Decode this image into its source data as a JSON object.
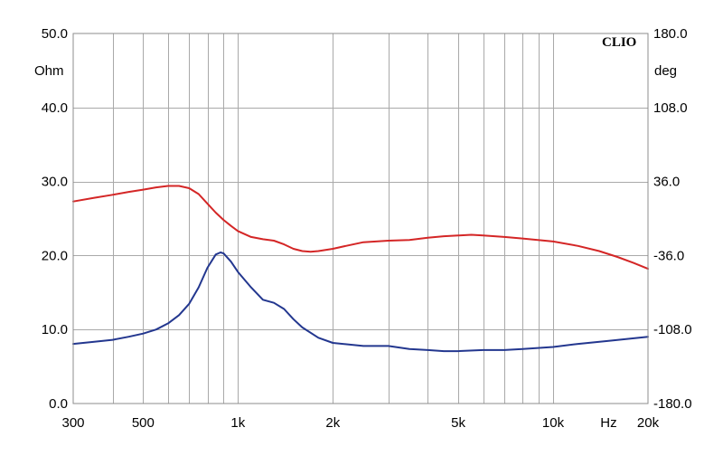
{
  "chart_data": {
    "type": "line",
    "brand": "CLIO",
    "x_scale": "log",
    "xlim": [
      300,
      20000
    ],
    "x_ticks": [
      {
        "value": 300,
        "label": "300"
      },
      {
        "value": 500,
        "label": "500"
      },
      {
        "value": 1000,
        "label": "1k"
      },
      {
        "value": 2000,
        "label": "2k"
      },
      {
        "value": 5000,
        "label": "5k"
      },
      {
        "value": 10000,
        "label": "10k"
      },
      {
        "value": 20000,
        "label": "20k"
      }
    ],
    "x_unit": "Hz",
    "x_unit_value": 15000,
    "x_minor_grid": [
      400,
      600,
      700,
      800,
      900,
      3000,
      4000,
      6000,
      7000,
      8000,
      9000
    ],
    "y_left": {
      "unit": "Ohm",
      "ylim": [
        0,
        50
      ],
      "ticks": [
        "0.0",
        "10.0",
        "20.0",
        "30.0",
        "40.0",
        "50.0"
      ]
    },
    "y_right": {
      "unit": "deg",
      "ylim": [
        -180,
        180
      ],
      "ticks": [
        "-180.0",
        "-108.0",
        "-36.0",
        "36.0",
        "108.0",
        "180.0"
      ]
    },
    "grid": true,
    "colors": {
      "impedance": "#d42626",
      "phase": "#23378f"
    },
    "series": [
      {
        "key": "impedance",
        "axis": "left",
        "points": [
          [
            300,
            27.3
          ],
          [
            350,
            27.8
          ],
          [
            400,
            28.2
          ],
          [
            450,
            28.6
          ],
          [
            500,
            28.9
          ],
          [
            550,
            29.2
          ],
          [
            600,
            29.4
          ],
          [
            650,
            29.4
          ],
          [
            700,
            29.1
          ],
          [
            750,
            28.3
          ],
          [
            800,
            27.0
          ],
          [
            850,
            25.8
          ],
          [
            900,
            24.8
          ],
          [
            950,
            24.0
          ],
          [
            1000,
            23.3
          ],
          [
            1100,
            22.5
          ],
          [
            1200,
            22.2
          ],
          [
            1300,
            22.0
          ],
          [
            1400,
            21.5
          ],
          [
            1500,
            20.9
          ],
          [
            1600,
            20.6
          ],
          [
            1700,
            20.5
          ],
          [
            1800,
            20.6
          ],
          [
            2000,
            20.9
          ],
          [
            2200,
            21.3
          ],
          [
            2500,
            21.8
          ],
          [
            3000,
            22.0
          ],
          [
            3500,
            22.1
          ],
          [
            4000,
            22.4
          ],
          [
            4500,
            22.6
          ],
          [
            5000,
            22.7
          ],
          [
            5500,
            22.8
          ],
          [
            6000,
            22.7
          ],
          [
            7000,
            22.5
          ],
          [
            8000,
            22.3
          ],
          [
            10000,
            21.9
          ],
          [
            12000,
            21.3
          ],
          [
            14000,
            20.6
          ],
          [
            16000,
            19.8
          ],
          [
            18000,
            19.0
          ],
          [
            20000,
            18.2
          ]
        ]
      },
      {
        "key": "phase",
        "axis": "right",
        "points": [
          [
            300,
            -122
          ],
          [
            350,
            -120
          ],
          [
            400,
            -118
          ],
          [
            450,
            -115
          ],
          [
            500,
            -112
          ],
          [
            550,
            -108
          ],
          [
            600,
            -102
          ],
          [
            650,
            -94
          ],
          [
            700,
            -83
          ],
          [
            750,
            -67
          ],
          [
            800,
            -48
          ],
          [
            850,
            -35
          ],
          [
            880,
            -33
          ],
          [
            900,
            -34
          ],
          [
            950,
            -42
          ],
          [
            1000,
            -52
          ],
          [
            1100,
            -67
          ],
          [
            1200,
            -79
          ],
          [
            1300,
            -82
          ],
          [
            1400,
            -88
          ],
          [
            1500,
            -98
          ],
          [
            1600,
            -106
          ],
          [
            1800,
            -116
          ],
          [
            2000,
            -121
          ],
          [
            2500,
            -124
          ],
          [
            3000,
            -124
          ],
          [
            3500,
            -127
          ],
          [
            4000,
            -128
          ],
          [
            4500,
            -129
          ],
          [
            5000,
            -129
          ],
          [
            6000,
            -128
          ],
          [
            7000,
            -128
          ],
          [
            8000,
            -127
          ],
          [
            10000,
            -125
          ],
          [
            12000,
            -122
          ],
          [
            15000,
            -119
          ],
          [
            20000,
            -115
          ]
        ]
      }
    ]
  }
}
